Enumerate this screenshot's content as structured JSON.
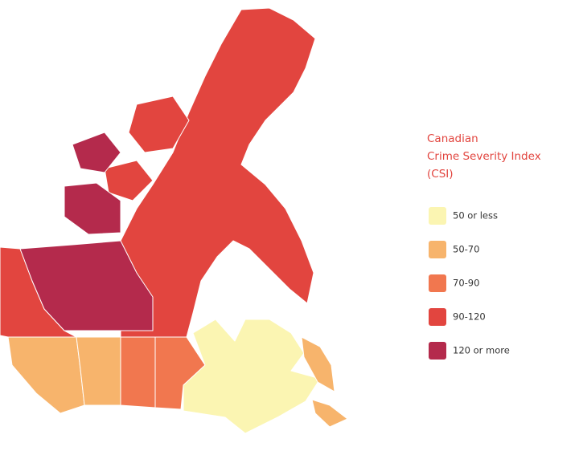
{
  "legend": {
    "title": [
      "Canadian",
      "Crime Severity Index",
      "(CSI)"
    ],
    "items": [
      {
        "label": "50 or less",
        "color": "#fbf5b2"
      },
      {
        "label": "50-70",
        "color": "#f7b46c"
      },
      {
        "label": "70-90",
        "color": "#f1774f"
      },
      {
        "label": "90-120",
        "color": "#e2453f"
      },
      {
        "label": "120 or more",
        "color": "#b42a4c"
      }
    ]
  }
}
